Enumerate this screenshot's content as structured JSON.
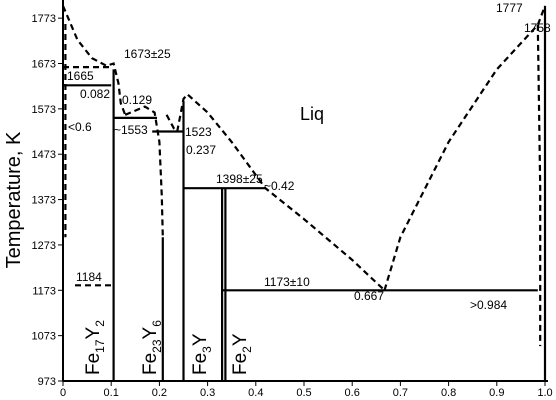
{
  "chart_data": {
    "type": "phase",
    "ylabel": "Temperature, K",
    "xlim": [
      0,
      1
    ],
    "ylim": [
      973,
      1813
    ],
    "xticks": [
      0,
      0.1,
      0.2,
      0.3,
      0.4,
      0.5,
      0.6,
      0.7,
      0.8,
      0.9,
      {
        "value": 1,
        "label": "1.0"
      }
    ],
    "yticks": [
      973,
      1073,
      1173,
      1273,
      1373,
      1473,
      1573,
      1673,
      1773
    ],
    "color": "#000000",
    "series": [
      {
        "dash": true,
        "x": [
          0,
          0.03,
          0.06,
          0.09,
          0.105,
          0.115,
          0.12,
          0.129
        ],
        "values": [
          1800,
          1725,
          1685,
          1668,
          1673,
          1630,
          1585,
          1560
        ]
      },
      {
        "dash": true,
        "x": [
          0.129,
          0.17,
          0.19,
          0.2,
          0.205,
          0.207
        ],
        "values": [
          1560,
          1578,
          1565,
          1500,
          1380,
          1290
        ]
      },
      {
        "dash": true,
        "x": [
          0.215,
          0.23,
          0.237
        ],
        "values": [
          1560,
          1530,
          1523
        ]
      },
      {
        "dash": true,
        "x": [
          0.237,
          0.25,
          0.258,
          0.3,
          0.35,
          0.42,
          0.5,
          0.6,
          0.667
        ],
        "values": [
          1523,
          1595,
          1605,
          1565,
          1500,
          1398,
          1330,
          1240,
          1173
        ]
      },
      {
        "dash": true,
        "x": [
          0.667,
          0.7,
          0.8,
          0.9,
          0.985,
          1
        ],
        "values": [
          1173,
          1290,
          1500,
          1660,
          1758,
          1800
        ]
      },
      {
        "dash": true,
        "x": [
          0.985,
          0.99,
          0.99
        ],
        "values": [
          1758,
          1400,
          1050
        ]
      },
      {
        "dash": true,
        "x": [
          0.005,
          0.005
        ],
        "values": [
          1760,
          1290
        ]
      },
      {
        "dash": true,
        "x": [
          0,
          0.1
        ],
        "values": [
          1665,
          1665
        ]
      },
      {
        "dash": true,
        "x": [
          0.025,
          0.1
        ],
        "values": [
          1184,
          1184
        ]
      },
      {
        "dash": false,
        "x": [
          0,
          0.1
        ],
        "values": [
          1625,
          1625
        ]
      },
      {
        "dash": false,
        "x": [
          0.105,
          0.105
        ],
        "values": [
          973,
          1660
        ]
      },
      {
        "dash": false,
        "x": [
          0.105,
          0.195
        ],
        "values": [
          1553,
          1553
        ]
      },
      {
        "dash": false,
        "x": [
          0.207,
          0.207
        ],
        "values": [
          973,
          1290
        ]
      },
      {
        "dash": false,
        "x": [
          0.185,
          0.25
        ],
        "values": [
          1523,
          1523
        ]
      },
      {
        "dash": false,
        "x": [
          0.25,
          0.25
        ],
        "values": [
          973,
          1590
        ]
      },
      {
        "dash": false,
        "x": [
          0.25,
          0.42
        ],
        "values": [
          1398,
          1398
        ]
      },
      {
        "dash": false,
        "x": [
          0.33,
          0.33
        ],
        "values": [
          973,
          1398
        ]
      },
      {
        "dash": false,
        "x": [
          0.337,
          0.337
        ],
        "values": [
          973,
          1398
        ]
      },
      {
        "dash": false,
        "x": [
          0.33,
          0.985
        ],
        "values": [
          1173,
          1173
        ]
      },
      {
        "dash": false,
        "x": [
          1,
          1
        ],
        "values": [
          973,
          1800
        ]
      }
    ],
    "annotations": [
      "1777",
      "1758",
      "1673±25",
      "1665",
      "0.082",
      "0.129",
      "<0.6",
      "~1553",
      "~1523",
      "0.237",
      "Liq",
      "1398±25",
      "~0.42",
      "1184",
      "1173±10",
      "0.667",
      ">0.984"
    ],
    "phases": [
      [
        "Fe",
        "17",
        "Y",
        "2"
      ],
      [
        "Fe",
        "23",
        "Y",
        "6"
      ],
      [
        "Fe",
        "3",
        "Y"
      ],
      [
        "Fe",
        "2",
        "Y"
      ]
    ]
  }
}
